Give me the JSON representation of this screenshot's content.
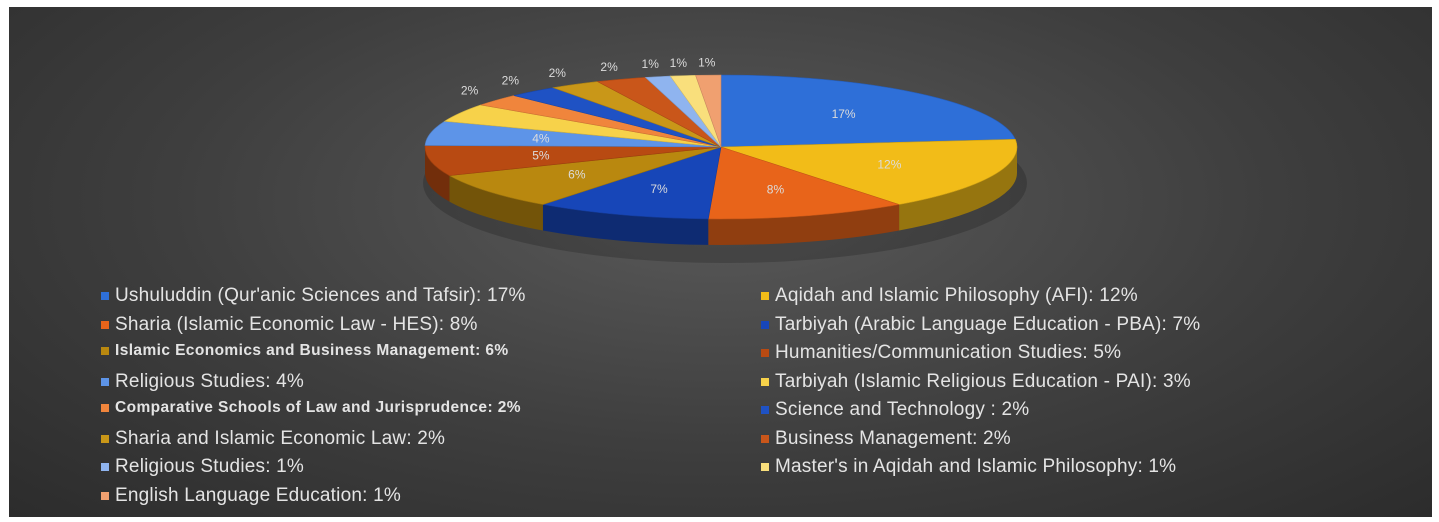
{
  "chart_data": {
    "type": "pie",
    "title": "",
    "slices": [
      {
        "label": "Ushuluddin (Qur'anic Sciences and Tafsir)",
        "legend": "Ushuluddin (Qur'anic Sciences and Tafsir): 17%",
        "value": 17,
        "data_label": "17%",
        "color": "#2e6fd8"
      },
      {
        "label": "Aqidah and Islamic Philosophy (AFI)",
        "legend": "Aqidah and Islamic Philosophy (AFI): 12%",
        "value": 12,
        "data_label": "12%",
        "color": "#f2bc18"
      },
      {
        "label": "Sharia (Islamic Economic Law - HES)",
        "legend": "Sharia (Islamic Economic Law - HES): 8%",
        "value": 8,
        "data_label": "8%",
        "color": "#e8641a"
      },
      {
        "label": "Tarbiyah (Arabic Language Education - PBA)",
        "legend": "Tarbiyah (Arabic Language Education - PBA): 7%",
        "value": 7,
        "data_label": "7%",
        "color": "#1746b8"
      },
      {
        "label": "Islamic Economics and Business Management",
        "legend": "Islamic Economics and Business Management: 6%",
        "value": 6,
        "data_label": "6%",
        "color": "#b9880f"
      },
      {
        "label": "Humanities/Communication Studies",
        "legend": "Humanities/Communication Studies: 5%",
        "value": 5,
        "data_label": "5%",
        "color": "#b84a12"
      },
      {
        "label": "Religious Studies",
        "legend": "Religious Studies: 4%",
        "value": 4,
        "data_label": "4%",
        "color": "#5d94e8"
      },
      {
        "label": "Tarbiyah (Islamic Religious Education - PAI)",
        "legend": "Tarbiyah (Islamic Religious Education - PAI): 3%",
        "value": 3,
        "data_label": "",
        "color": "#f7d24a"
      },
      {
        "label": "Comparative Schools of Law and Jurisprudence",
        "legend": "Comparative Schools of Law and Jurisprudence: 2%",
        "value": 2,
        "data_label": "2%",
        "color": "#f0853c"
      },
      {
        "label": "Science and Technology",
        "legend": "Science and Technology : 2%",
        "value": 2,
        "data_label": "2%",
        "color": "#1f52c4"
      },
      {
        "label": "Sharia and Islamic Economic Law",
        "legend": "Sharia and Islamic Economic Law: 2%",
        "value": 2,
        "data_label": "2%",
        "color": "#c99718"
      },
      {
        "label": "Business Management",
        "legend": "Business Management: 2%",
        "value": 2,
        "data_label": "2%",
        "color": "#c9561a"
      },
      {
        "label": "Religious Studies",
        "legend": "Religious Studies: 1%",
        "value": 1,
        "data_label": "1%",
        "color": "#8fb4ef"
      },
      {
        "label": "Master's in Aqidah and Islamic Philosophy",
        "legend": "Master's in Aqidah and Islamic Philosophy: 1%",
        "value": 1,
        "data_label": "1%",
        "color": "#f9df7c"
      },
      {
        "label": "English Language Education",
        "legend": "English Language Education: 1%",
        "value": 1,
        "data_label": "1%",
        "color": "#f0a070"
      }
    ],
    "style": "3d-pie",
    "legend_position": "bottom, two columns",
    "background": "#3a3a3a"
  }
}
